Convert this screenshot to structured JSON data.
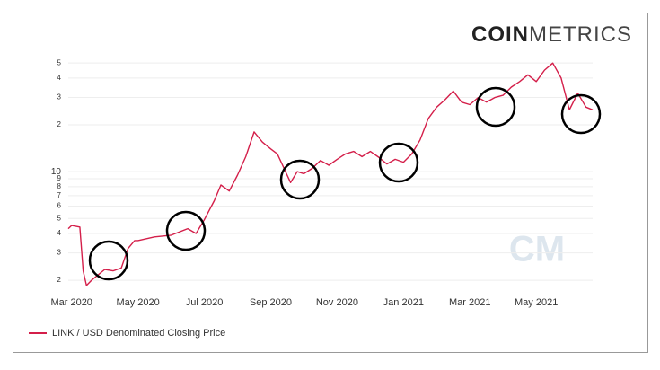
{
  "logo": {
    "bold": "COIN",
    "light": "METRICS"
  },
  "chart_data": {
    "type": "line",
    "log_scale": true,
    "grid": true,
    "watermark": "CM",
    "x": [
      -0.1,
      0,
      0.25,
      0.35,
      0.45,
      0.6,
      1,
      1.25,
      1.5,
      1.7,
      1.9,
      2,
      2.5,
      3,
      3.5,
      3.75,
      4,
      4.3,
      4.5,
      4.75,
      5,
      5.25,
      5.5,
      5.75,
      6,
      6.2,
      6.4,
      6.6,
      6.8,
      7,
      7.25,
      7.5,
      7.75,
      8,
      8.25,
      8.5,
      8.75,
      9,
      9.25,
      9.5,
      9.75,
      10,
      10.25,
      10.5,
      10.75,
      11,
      11.25,
      11.5,
      11.75,
      12,
      12.25,
      12.5,
      12.75,
      13,
      13.25,
      13.5,
      13.75,
      14,
      14.25,
      14.5,
      14.75,
      15,
      15.25,
      15.5,
      15.7
    ],
    "series": [
      {
        "name": "LINK / USD Denominated Closing Price",
        "color": "#d41f4a",
        "values": [
          4.3,
          4.5,
          4.4,
          2.3,
          1.85,
          2.0,
          2.35,
          2.3,
          2.4,
          3.2,
          3.6,
          3.6,
          3.8,
          3.9,
          4.3,
          4.0,
          4.9,
          6.5,
          8.2,
          7.5,
          9.5,
          12.5,
          18,
          15.5,
          14,
          13,
          10.5,
          8.5,
          10,
          9.7,
          10.5,
          11.8,
          11,
          12,
          13,
          13.5,
          12.5,
          13.5,
          12.4,
          11.2,
          12,
          11.5,
          13,
          16,
          22,
          26,
          29,
          33,
          28,
          27,
          30,
          28,
          30,
          31,
          35,
          38,
          42,
          38,
          45,
          50,
          40,
          25,
          32,
          26,
          25
        ]
      }
    ],
    "xlim": [
      -0.1,
      15.7
    ],
    "xticks": [
      {
        "value": 0,
        "label": "Mar 2020"
      },
      {
        "value": 2,
        "label": "May 2020"
      },
      {
        "value": 4,
        "label": "Jul 2020"
      },
      {
        "value": 6,
        "label": "Sep 2020"
      },
      {
        "value": 8,
        "label": "Nov 2020"
      },
      {
        "value": 10,
        "label": "Jan 2021"
      },
      {
        "value": 12,
        "label": "Mar 2021"
      },
      {
        "value": 14,
        "label": "May 2021"
      }
    ],
    "ylim": [
      1.8,
      55
    ],
    "yticks": [
      2,
      3,
      4,
      5,
      6,
      7,
      8,
      9,
      10,
      {
        "value": 20,
        "label": "2"
      },
      {
        "value": 30,
        "label": "3"
      },
      {
        "value": 40,
        "label": "4"
      },
      {
        "value": 50,
        "label": "5"
      }
    ]
  }
}
